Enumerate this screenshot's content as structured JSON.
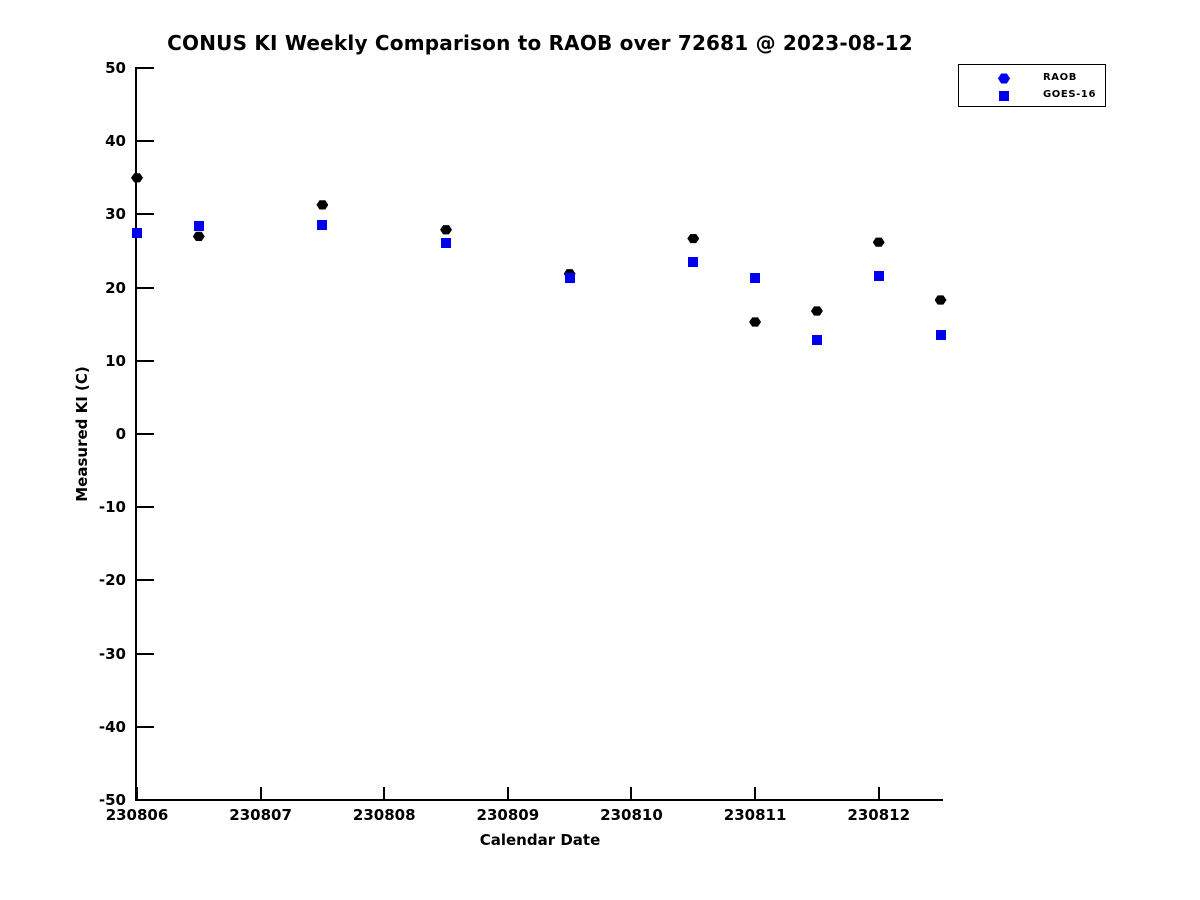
{
  "page": {
    "background_color": "#ffffff",
    "text_color": "#000000"
  },
  "chart_data": {
    "type": "scatter",
    "title": "CONUS KI Weekly Comparison to RAOB over 72681 @ 2023-08-12",
    "xlabel": "Calendar Date",
    "ylabel": "Measured KI (C)",
    "xlim": [
      230806,
      230812.52
    ],
    "ylim": [
      -50,
      50
    ],
    "x_ticks": [
      "230806",
      "230807",
      "230808",
      "230809",
      "230810",
      "230811",
      "230812"
    ],
    "y_ticks": [
      "-50",
      "-40",
      "-30",
      "-20",
      "-10",
      "0",
      "10",
      "20",
      "30",
      "40",
      "50"
    ],
    "grid": false,
    "legend_position": "top-right",
    "axis_color": "#000000",
    "series": [
      {
        "name": "RAOB",
        "marker": "hexagon",
        "color": "#000000",
        "legend_marker_color": "#0000ee",
        "points": [
          [
            230806.0,
            35.0
          ],
          [
            230806.5,
            27.0
          ],
          [
            230807.5,
            31.3
          ],
          [
            230808.5,
            27.9
          ],
          [
            230809.5,
            21.9
          ],
          [
            230810.5,
            26.7
          ],
          [
            230811.0,
            15.3
          ],
          [
            230811.5,
            16.8
          ],
          [
            230812.0,
            26.2
          ],
          [
            230812.5,
            18.3
          ]
        ]
      },
      {
        "name": "GOES-16",
        "marker": "square",
        "color": "#0000ee",
        "legend_marker_color": "#0000ee",
        "points": [
          [
            230806.0,
            27.5
          ],
          [
            230806.5,
            28.4
          ],
          [
            230807.5,
            28.5
          ],
          [
            230808.5,
            26.1
          ],
          [
            230809.5,
            21.3
          ],
          [
            230810.5,
            23.5
          ],
          [
            230811.0,
            21.3
          ],
          [
            230811.5,
            12.8
          ],
          [
            230812.0,
            21.6
          ],
          [
            230812.5,
            13.5
          ]
        ]
      }
    ]
  }
}
